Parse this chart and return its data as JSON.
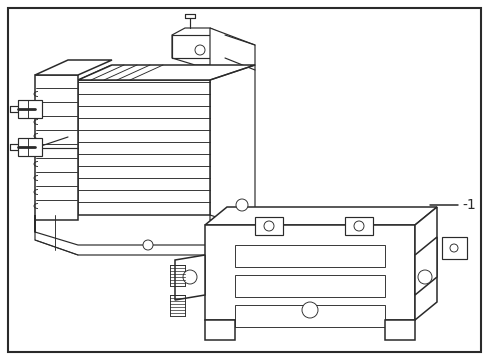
{
  "bg_color": "#ffffff",
  "border_color": "#2a2a2a",
  "line_color": "#2a2a2a",
  "border_lw": 1.5,
  "callout_label": "-1",
  "callout_font_size": 10,
  "fig_width": 4.9,
  "fig_height": 3.6,
  "dpi": 100
}
